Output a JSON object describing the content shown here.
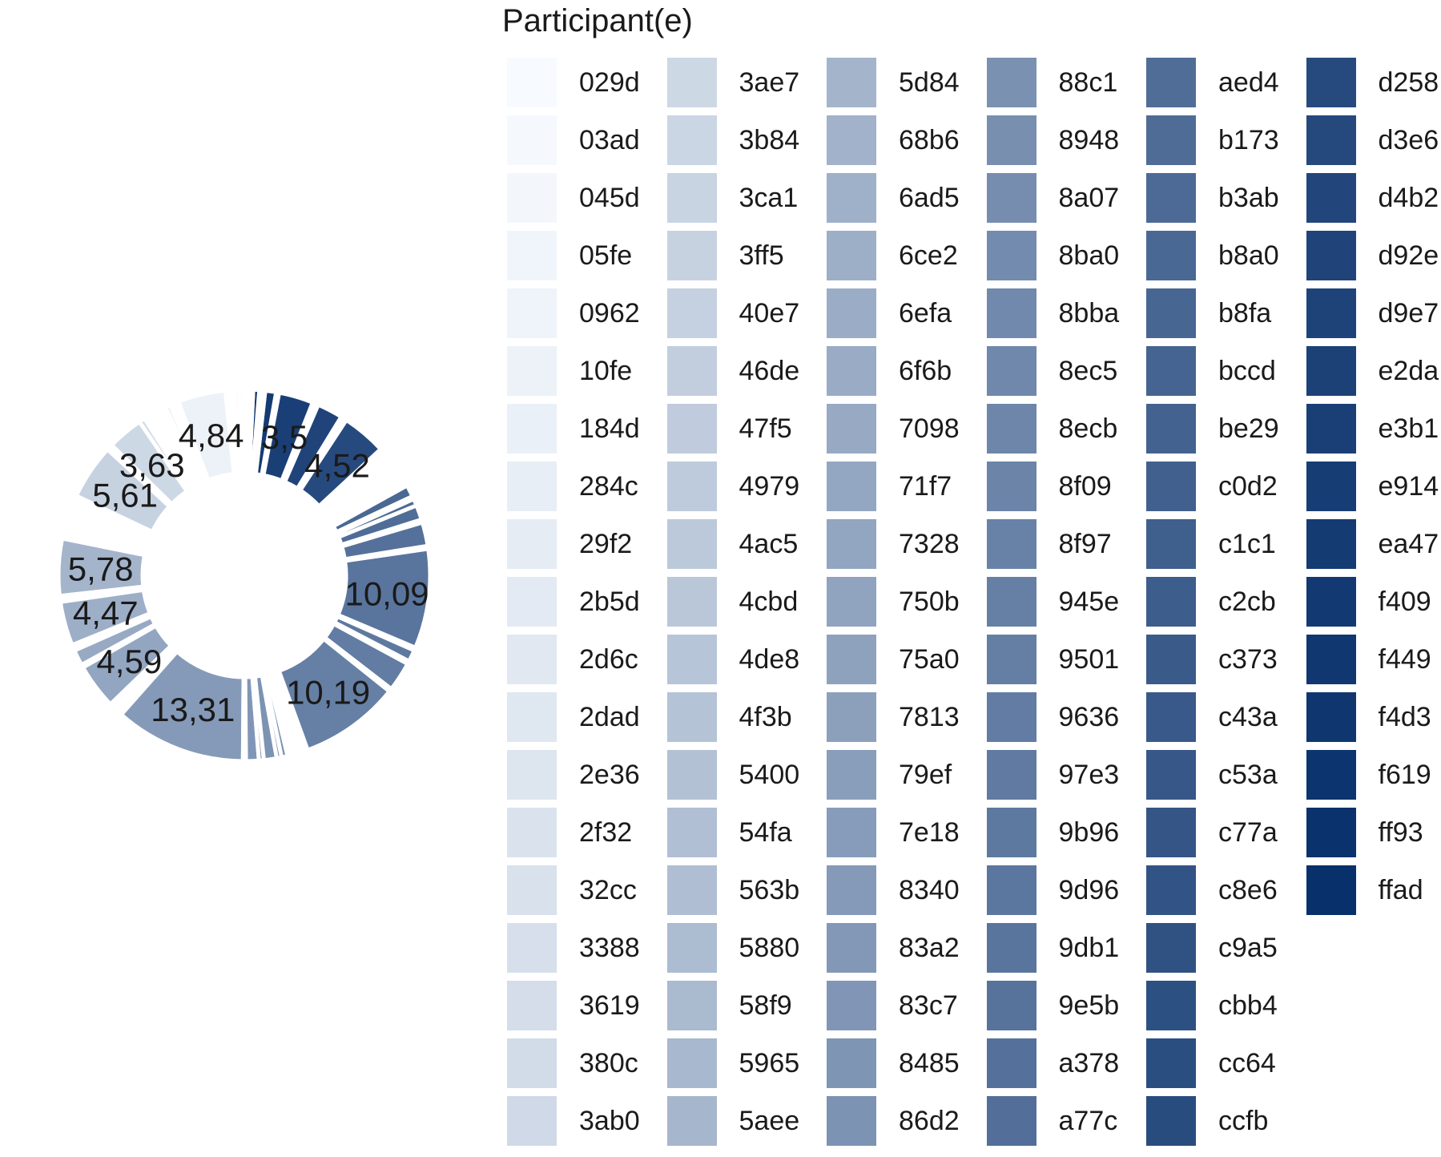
{
  "chart_data": {
    "type": "pie",
    "style": "donut",
    "legend_title": "Participant(e)",
    "legend_position": "right",
    "palette": {
      "light": "#f7fbff",
      "dark": "#08306b"
    },
    "slices": [
      {
        "name": "029d",
        "value": 0.5
      },
      {
        "name": "03ad",
        "value": 0.5
      },
      {
        "name": "045d",
        "value": 0.3
      },
      {
        "name": "05fe",
        "value": 0.3
      },
      {
        "name": "0962",
        "value": 0.3
      },
      {
        "name": "10fe",
        "value": 4.84,
        "label": "4,84"
      },
      {
        "name": "184d",
        "value": 0.3
      },
      {
        "name": "284c",
        "value": 0.3
      },
      {
        "name": "29f2",
        "value": 0.3
      },
      {
        "name": "2b5d",
        "value": 0.5
      },
      {
        "name": "2d6c",
        "value": 0.3
      },
      {
        "name": "2dad",
        "value": 0.3
      },
      {
        "name": "2e36",
        "value": 0.3
      },
      {
        "name": "2f32",
        "value": 0.3
      },
      {
        "name": "32cc",
        "value": 0.3
      },
      {
        "name": "3388",
        "value": 0.3
      },
      {
        "name": "3619",
        "value": 0.3
      },
      {
        "name": "380c",
        "value": 0.3
      },
      {
        "name": "3ab0",
        "value": 0.6
      },
      {
        "name": "3ae7",
        "value": 3.63,
        "label": "3,63"
      },
      {
        "name": "3b84",
        "value": 0.3
      },
      {
        "name": "3ca1",
        "value": 0.3
      },
      {
        "name": "3ff5",
        "value": 5.61,
        "label": "5,61"
      },
      {
        "name": "40e7",
        "value": 0.3
      },
      {
        "name": "46de",
        "value": 0.3
      },
      {
        "name": "47f5",
        "value": 0.3
      },
      {
        "name": "4979",
        "value": 0.3
      },
      {
        "name": "4ac5",
        "value": 0.3
      },
      {
        "name": "4cbd",
        "value": 0.3
      },
      {
        "name": "4de8",
        "value": 0.3
      },
      {
        "name": "4f3b",
        "value": 0.3
      },
      {
        "name": "5400",
        "value": 0.3
      },
      {
        "name": "54fa",
        "value": 0.3
      },
      {
        "name": "563b",
        "value": 0.3
      },
      {
        "name": "5880",
        "value": 0.3
      },
      {
        "name": "58f9",
        "value": 0.3
      },
      {
        "name": "5965",
        "value": 0.3
      },
      {
        "name": "5aee",
        "value": 0.3
      },
      {
        "name": "5d84",
        "value": 5.78,
        "label": "5,78"
      },
      {
        "name": "68b6",
        "value": 0.3
      },
      {
        "name": "6ad5",
        "value": 0.3
      },
      {
        "name": "6ce2",
        "value": 4.47,
        "label": "4,47"
      },
      {
        "name": "6efa",
        "value": 0.3
      },
      {
        "name": "6f6b",
        "value": 0.3
      },
      {
        "name": "7098",
        "value": 1.6
      },
      {
        "name": "71f7",
        "value": 0.3
      },
      {
        "name": "7328",
        "value": 4.59,
        "label": "4,59"
      },
      {
        "name": "750b",
        "value": 0.3
      },
      {
        "name": "75a0",
        "value": 0.3
      },
      {
        "name": "7813",
        "value": 0.3
      },
      {
        "name": "79ef",
        "value": 0.3
      },
      {
        "name": "7e18",
        "value": 0.3
      },
      {
        "name": "8340",
        "value": 13.31,
        "label": "13,31"
      },
      {
        "name": "83a2",
        "value": 0.3
      },
      {
        "name": "83c7",
        "value": 1.3
      },
      {
        "name": "8485",
        "value": 0.5
      },
      {
        "name": "86d2",
        "value": 1.3
      },
      {
        "name": "88c1",
        "value": 0.5
      },
      {
        "name": "8948",
        "value": 0.6
      },
      {
        "name": "8a07",
        "value": 0.3
      },
      {
        "name": "8ba0",
        "value": 0.3
      },
      {
        "name": "8bba",
        "value": 0.3
      },
      {
        "name": "8ec5",
        "value": 0.3
      },
      {
        "name": "8ecb",
        "value": 0.3
      },
      {
        "name": "8f09",
        "value": 0.3
      },
      {
        "name": "8f97",
        "value": 0.3
      },
      {
        "name": "945e",
        "value": 10.19,
        "label": "10,19"
      },
      {
        "name": "9501",
        "value": 0.3
      },
      {
        "name": "9636",
        "value": 3.0
      },
      {
        "name": "97e3",
        "value": 0.3
      },
      {
        "name": "9b96",
        "value": 1.2
      },
      {
        "name": "9d96",
        "value": 0.3
      },
      {
        "name": "9db1",
        "value": 10.09,
        "label": "10,09"
      },
      {
        "name": "9e5b",
        "value": 0.3
      },
      {
        "name": "a378",
        "value": 2.4
      },
      {
        "name": "a77c",
        "value": 0.3
      },
      {
        "name": "aed4",
        "value": 1.5
      },
      {
        "name": "b173",
        "value": 0.7
      },
      {
        "name": "b3ab",
        "value": 0.3
      },
      {
        "name": "b8a0",
        "value": 1.2
      },
      {
        "name": "b8fa",
        "value": 0.3
      },
      {
        "name": "bccd",
        "value": 0.3
      },
      {
        "name": "be29",
        "value": 0.3
      },
      {
        "name": "c0d2",
        "value": 0.3
      },
      {
        "name": "c1c1",
        "value": 0.3
      },
      {
        "name": "c2cb",
        "value": 0.3
      },
      {
        "name": "c373",
        "value": 0.3
      },
      {
        "name": "c43a",
        "value": 0.3
      },
      {
        "name": "c53a",
        "value": 0.3
      },
      {
        "name": "c77a",
        "value": 0.3
      },
      {
        "name": "c8e6",
        "value": 0.3
      },
      {
        "name": "c9a5",
        "value": 0.3
      },
      {
        "name": "cbb4",
        "value": 0.3
      },
      {
        "name": "cc64",
        "value": 0.3
      },
      {
        "name": "ccfb",
        "value": 0.3
      },
      {
        "name": "d258",
        "value": 4.52,
        "label": "4,52"
      },
      {
        "name": "d3e6",
        "value": 0.3
      },
      {
        "name": "d4b2",
        "value": 0.3
      },
      {
        "name": "d92e",
        "value": 2.6
      },
      {
        "name": "d9e7",
        "value": 0.3
      },
      {
        "name": "e2da",
        "value": 0.3
      },
      {
        "name": "e3b1",
        "value": 3.5,
        "label": "3,5"
      },
      {
        "name": "e914",
        "value": 0.3
      },
      {
        "name": "ea47",
        "value": 1.1
      },
      {
        "name": "f409",
        "value": 0.3
      },
      {
        "name": "f449",
        "value": 0.3
      },
      {
        "name": "f4d3",
        "value": 0.6
      },
      {
        "name": "f619",
        "value": 0.3
      },
      {
        "name": "ff93",
        "value": 0.3
      },
      {
        "name": "ffad",
        "value": 0.3
      }
    ]
  }
}
